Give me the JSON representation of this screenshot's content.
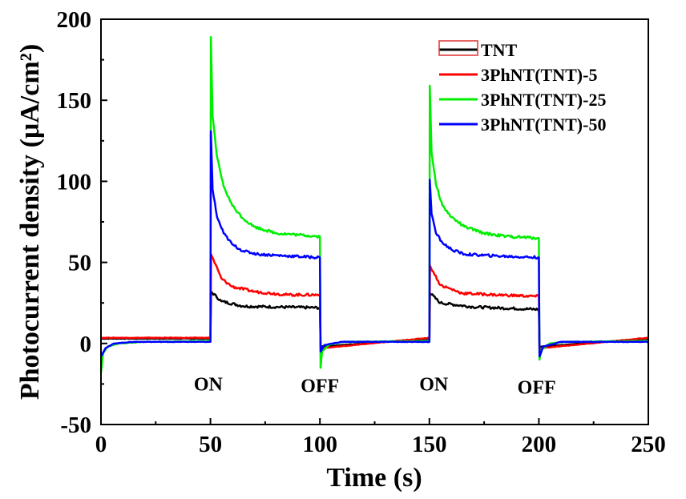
{
  "chart_data": {
    "type": "line",
    "xlabel": "Time (s)",
    "ylabel": "Photocurrent density (μA/cm²)",
    "xlim": [
      0,
      250
    ],
    "ylim": [
      -50,
      200
    ],
    "xticks": [
      0,
      50,
      100,
      150,
      200,
      250
    ],
    "yticks": [
      -50,
      0,
      50,
      100,
      150,
      200
    ],
    "grid": false,
    "legend_position": "top-right",
    "annotations": [
      {
        "text": "ON",
        "x": 49,
        "y": -25
      },
      {
        "text": "OFF",
        "x": 100,
        "y": -26
      },
      {
        "text": "ON",
        "x": 152,
        "y": -25
      },
      {
        "text": "OFF",
        "x": 199,
        "y": -27
      }
    ],
    "series": [
      {
        "name": "TNT",
        "color": "#000000",
        "dark": 3,
        "points": [
          [
            50,
            3
          ],
          [
            50.3,
            32
          ],
          [
            55,
            26
          ],
          [
            65,
            23
          ],
          [
            80,
            22.5
          ],
          [
            100,
            22
          ],
          [
            100.3,
            -2
          ],
          [
            150,
            3
          ],
          [
            150.3,
            31
          ],
          [
            155,
            25
          ],
          [
            170,
            22.5
          ],
          [
            200,
            21
          ],
          [
            200.3,
            -2
          ],
          [
            250,
            3
          ]
        ]
      },
      {
        "name": "3PhNT(TNT)-5",
        "color": "#ff0000",
        "dark": 3.5,
        "points": [
          [
            50,
            3.5
          ],
          [
            50.3,
            55
          ],
          [
            55,
            40
          ],
          [
            60,
            35
          ],
          [
            70,
            32
          ],
          [
            85,
            30
          ],
          [
            100,
            30
          ],
          [
            100.3,
            -3
          ],
          [
            150,
            3.5
          ],
          [
            150.3,
            48
          ],
          [
            155,
            36
          ],
          [
            165,
            31
          ],
          [
            180,
            30
          ],
          [
            200,
            29
          ],
          [
            200.3,
            -3
          ],
          [
            250,
            3.5
          ]
        ]
      },
      {
        "name": "3PhNT(TNT)-25",
        "color": "#00ee00",
        "dark": 1.5,
        "points": [
          [
            0,
            -18
          ],
          [
            1,
            -6
          ],
          [
            3,
            -2
          ],
          [
            8,
            0
          ],
          [
            20,
            1
          ],
          [
            50,
            1.5
          ],
          [
            50.2,
            189
          ],
          [
            51,
            140
          ],
          [
            53,
            115
          ],
          [
            56,
            97
          ],
          [
            60,
            85
          ],
          [
            65,
            77
          ],
          [
            70,
            72
          ],
          [
            80,
            68
          ],
          [
            90,
            67
          ],
          [
            100,
            66
          ],
          [
            100.3,
            -15
          ],
          [
            101,
            -5
          ],
          [
            104,
            -1
          ],
          [
            110,
            1
          ],
          [
            150,
            1.5
          ],
          [
            150.2,
            159
          ],
          [
            151,
            118
          ],
          [
            153,
            98
          ],
          [
            156,
            85
          ],
          [
            160,
            78
          ],
          [
            166,
            72
          ],
          [
            175,
            68
          ],
          [
            185,
            66
          ],
          [
            200,
            65
          ],
          [
            200.3,
            -10
          ],
          [
            201,
            -4
          ],
          [
            205,
            0
          ],
          [
            212,
            1
          ],
          [
            250,
            1.5
          ]
        ]
      },
      {
        "name": "3PhNT(TNT)-50",
        "color": "#0000ff",
        "dark": 1,
        "points": [
          [
            0,
            -8
          ],
          [
            2,
            -3
          ],
          [
            6,
            0
          ],
          [
            15,
            1
          ],
          [
            50,
            1
          ],
          [
            50.2,
            131
          ],
          [
            51,
            95
          ],
          [
            53,
            78
          ],
          [
            56,
            68
          ],
          [
            60,
            61
          ],
          [
            65,
            57
          ],
          [
            72,
            55
          ],
          [
            85,
            54
          ],
          [
            100,
            53
          ],
          [
            100.3,
            -5
          ],
          [
            102,
            -1
          ],
          [
            110,
            1
          ],
          [
            150,
            1
          ],
          [
            150.2,
            101
          ],
          [
            151,
            80
          ],
          [
            153,
            68
          ],
          [
            156,
            62
          ],
          [
            160,
            58
          ],
          [
            166,
            55
          ],
          [
            180,
            54
          ],
          [
            200,
            53
          ],
          [
            200.3,
            -8
          ],
          [
            202,
            -2
          ],
          [
            210,
            1
          ],
          [
            250,
            1
          ]
        ]
      }
    ]
  }
}
